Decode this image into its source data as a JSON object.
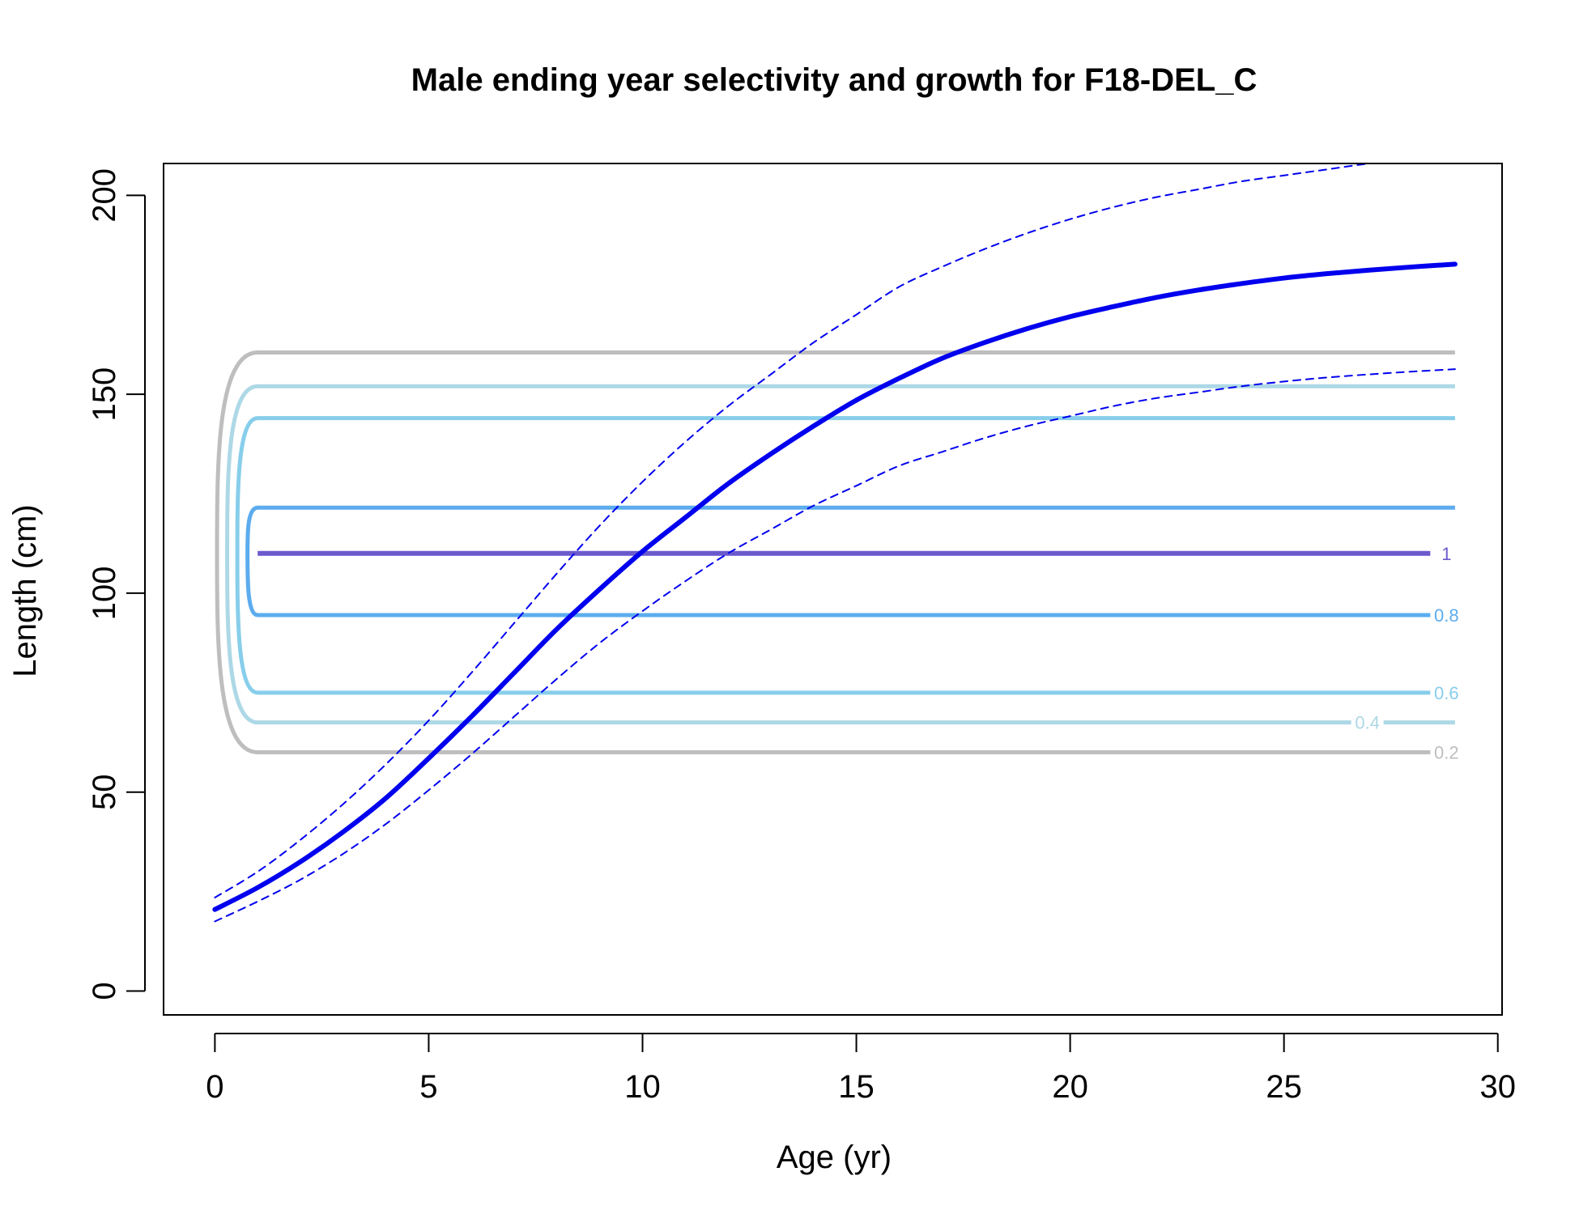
{
  "chart_data": {
    "type": "line",
    "title": "Male ending year selectivity and growth for F18-DEL_C",
    "xlabel": "Age (yr)",
    "ylabel": "Length (cm)",
    "xlim": [
      -1.2,
      30.1
    ],
    "ylim": [
      -6,
      208
    ],
    "x_ticks": [
      0,
      5,
      10,
      15,
      20,
      25,
      30
    ],
    "y_ticks": [
      0,
      50,
      100,
      150,
      200
    ],
    "grid": false,
    "growth": {
      "mean": {
        "x": [
          0,
          1,
          2,
          3,
          4,
          5,
          6,
          7,
          8,
          9,
          10,
          11,
          12,
          13,
          14,
          15,
          16,
          17,
          18,
          19,
          20,
          21,
          22,
          23,
          24,
          25,
          26,
          27,
          28,
          29
        ],
        "y": [
          20.5,
          26,
          32.5,
          40,
          48.5,
          58.5,
          69,
          80,
          91,
          101,
          110.5,
          119,
          127.5,
          135,
          142,
          148.5,
          154,
          159,
          163,
          166.5,
          169.5,
          172,
          174.3,
          176.2,
          177.8,
          179.2,
          180.3,
          181.2,
          182,
          182.7
        ],
        "color": "#0000ee"
      },
      "upper": {
        "x": [
          0,
          1,
          2,
          3,
          4,
          5,
          6,
          7,
          8,
          9,
          10,
          11,
          12,
          13,
          14,
          15,
          16,
          17,
          18,
          19,
          20,
          21,
          22,
          23,
          24,
          25,
          26,
          27,
          28,
          29
        ],
        "y": [
          23.5,
          30,
          38,
          47,
          57,
          68,
          80,
          92.5,
          105,
          117,
          128,
          138,
          147,
          155,
          163,
          170,
          177,
          182,
          186.5,
          190.5,
          194,
          197,
          199.5,
          201.5,
          203.5,
          205,
          206.5,
          208,
          209,
          210
        ],
        "color": "#0000ee"
      },
      "lower": {
        "x": [
          0,
          1,
          2,
          3,
          4,
          5,
          6,
          7,
          8,
          9,
          10,
          11,
          12,
          13,
          14,
          15,
          16,
          17,
          18,
          19,
          20,
          21,
          22,
          23,
          24,
          25,
          26,
          27,
          28,
          29
        ],
        "y": [
          17.5,
          22.5,
          28,
          34.5,
          42,
          50.5,
          59.5,
          69,
          78.5,
          87.5,
          95.5,
          103,
          110,
          116,
          122,
          127,
          132,
          135.5,
          139,
          142,
          144.5,
          147,
          149,
          150.5,
          152,
          153.2,
          154.2,
          155,
          155.7,
          156.3
        ],
        "color": "#0000ee"
      }
    },
    "selectivity_contours": [
      {
        "level": "0.2",
        "low": 60,
        "high": 160.5,
        "color": "#bebebe"
      },
      {
        "level": "0.4",
        "low": 67.5,
        "high": 152,
        "color": "#add8e6"
      },
      {
        "level": "0.6",
        "low": 75,
        "high": 144,
        "color": "#87ceeb"
      },
      {
        "level": "0.8",
        "low": 94.5,
        "high": 121.5,
        "color": "#5cacee"
      },
      {
        "level": "1",
        "low": 110,
        "high": 110,
        "color": "#6a5acd"
      }
    ]
  }
}
